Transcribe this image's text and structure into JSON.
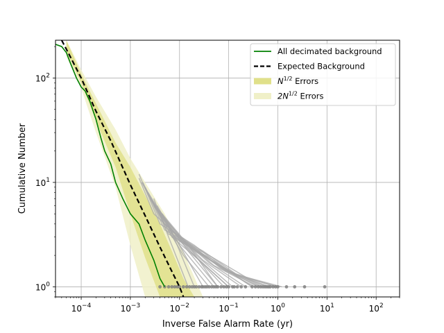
{
  "chart_data": {
    "type": "line",
    "xlabel": "Inverse False Alarm Rate (yr)",
    "ylabel": "Cumulative Number",
    "xscale": "log",
    "yscale": "log",
    "xlim": [
      3e-05,
      300
    ],
    "ylim": [
      0.8,
      230
    ],
    "grid": true,
    "legend_position": "top-right",
    "x_ticks": [
      {
        "value": 0.0001,
        "base": "10",
        "exp": "−4"
      },
      {
        "value": 0.001,
        "base": "10",
        "exp": "−3"
      },
      {
        "value": 0.01,
        "base": "10",
        "exp": "−2"
      },
      {
        "value": 0.1,
        "base": "10",
        "exp": "−1"
      },
      {
        "value": 1,
        "base": "10",
        "exp": "0"
      },
      {
        "value": 10,
        "base": "10",
        "exp": "1"
      },
      {
        "value": 100,
        "base": "10",
        "exp": "2"
      }
    ],
    "y_ticks": [
      {
        "value": 1,
        "base": "10",
        "exp": "0"
      },
      {
        "value": 10,
        "base": "10",
        "exp": "1"
      },
      {
        "value": 100,
        "base": "10",
        "exp": "2"
      }
    ],
    "legend": [
      {
        "key": "decimated",
        "label": "All decimated background",
        "kind": "line",
        "color": "#008000"
      },
      {
        "key": "expected",
        "label": "Expected Background",
        "kind": "dashed",
        "color": "#000000"
      },
      {
        "key": "err1",
        "label_prefix": "N",
        "label_sup": "1/2",
        "label_suffix": " Errors",
        "kind": "patch",
        "color": "#e0e08a"
      },
      {
        "key": "err2",
        "label_prefix": "2N",
        "label_sup": "1/2",
        "label_suffix": " Errors",
        "kind": "patch",
        "color": "#f0f0c8"
      }
    ],
    "series": [
      {
        "name": "All decimated background",
        "color": "#008000",
        "x": [
          3e-05,
          4e-05,
          5e-05,
          6e-05,
          8e-05,
          0.0001,
          0.00012,
          0.00015,
          0.0002,
          0.00025,
          0.0003,
          0.0004,
          0.0005,
          0.0007,
          0.001,
          0.0015,
          0.002,
          0.003,
          0.004,
          0.005
        ],
        "y": [
          210,
          200,
          175,
          140,
          100,
          82,
          75,
          60,
          40,
          27,
          20,
          15,
          10,
          7,
          5,
          4,
          2.8,
          1.8,
          1.2,
          1.0
        ]
      },
      {
        "name": "Expected Background",
        "color": "#000000",
        "x": [
          4e-05,
          6e-05,
          0.0001,
          0.0002,
          0.0004,
          0.001,
          0.002,
          0.004,
          0.007,
          0.01,
          0.012
        ],
        "y": [
          230,
          160,
          100,
          48,
          25,
          9.5,
          4.8,
          2.4,
          1.4,
          1.0,
          0.8
        ]
      }
    ],
    "bands": [
      {
        "name": "2N^{1/2} Errors",
        "color": "#f0f0c8",
        "x": [
          5e-05,
          0.0001,
          0.0002,
          0.0005,
          0.001,
          0.002,
          0.005,
          0.01,
          0.03
        ],
        "low": [
          160,
          80,
          30,
          9,
          2.5,
          0.8,
          0.8,
          0.8,
          0.8
        ],
        "high": [
          230,
          120,
          66,
          32,
          17,
          10,
          5,
          2.6,
          0.8
        ]
      },
      {
        "name": "N^{1/2} Errors",
        "color": "#e0e08a",
        "x": [
          5e-05,
          0.0001,
          0.0002,
          0.0005,
          0.001,
          0.002,
          0.004,
          0.007,
          0.012,
          0.02
        ],
        "low": [
          180,
          90,
          39,
          14,
          5,
          1.9,
          0.8,
          0.8,
          0.8,
          0.8
        ],
        "high": [
          230,
          110,
          57,
          24,
          14,
          7.5,
          4,
          2.2,
          1.2,
          0.8
        ]
      }
    ],
    "background_trials": [
      {
        "x": [
          0.0015,
          0.004,
          0.02,
          0.08,
          0.3
        ],
        "y": [
          12,
          4,
          2.5,
          1.5,
          1.0
        ]
      },
      {
        "x": [
          0.0018,
          0.005,
          0.03,
          0.15,
          0.6
        ],
        "y": [
          10,
          3.5,
          2.2,
          1.3,
          1.0
        ]
      },
      {
        "x": [
          0.002,
          0.006,
          0.04,
          0.25,
          1.0
        ],
        "y": [
          9,
          3.2,
          2,
          1.2,
          1.0
        ]
      },
      {
        "x": [
          0.0022,
          0.007,
          0.05,
          0.3
        ],
        "y": [
          8,
          3,
          1.8,
          1.0
        ]
      },
      {
        "x": [
          0.0025,
          0.008,
          0.06,
          0.4
        ],
        "y": [
          7,
          3,
          1.6,
          1.0
        ]
      },
      {
        "x": [
          0.003,
          0.01,
          0.08,
          0.5
        ],
        "y": [
          6,
          2.8,
          1.5,
          1.0
        ]
      },
      {
        "x": [
          0.0015,
          0.003,
          0.015,
          0.06
        ],
        "y": [
          11,
          5,
          2.5,
          1.0
        ]
      },
      {
        "x": [
          0.0017,
          0.0045,
          0.02,
          0.1
        ],
        "y": [
          10,
          4.5,
          2,
          1.0
        ]
      },
      {
        "x": [
          0.002,
          0.005,
          0.025,
          0.12
        ],
        "y": [
          9,
          4,
          1.9,
          1.0
        ]
      },
      {
        "x": [
          0.0023,
          0.006,
          0.03,
          0.18
        ],
        "y": [
          8,
          3.8,
          1.8,
          1.0
        ]
      },
      {
        "x": [
          0.0026,
          0.007,
          0.04,
          0.22
        ],
        "y": [
          7,
          3.5,
          1.7,
          1.0
        ]
      },
      {
        "x": [
          0.0028,
          0.009,
          0.05,
          0.35
        ],
        "y": [
          6.5,
          3.2,
          1.6,
          1.0
        ]
      },
      {
        "x": [
          0.0032,
          0.011,
          0.07,
          0.45
        ],
        "y": [
          6,
          3,
          1.5,
          1.0
        ]
      },
      {
        "x": [
          0.0035,
          0.012,
          0.09,
          0.7
        ],
        "y": [
          5.5,
          2.8,
          1.4,
          1.0
        ]
      },
      {
        "x": [
          0.004,
          0.015,
          0.1,
          0.9
        ],
        "y": [
          5,
          2.5,
          1.4,
          1.0
        ]
      },
      {
        "x": [
          0.005,
          0.02,
          0.15,
          1.2
        ],
        "y": [
          4,
          2.2,
          1.3,
          1.0
        ]
      },
      {
        "x": [
          0.0035,
          0.008,
          0.03
        ],
        "y": [
          6,
          3,
          1.0
        ]
      },
      {
        "x": [
          0.004,
          0.01,
          0.05
        ],
        "y": [
          5,
          2.5,
          1.0
        ]
      },
      {
        "x": [
          0.005,
          0.012,
          0.04
        ],
        "y": [
          4,
          2,
          1.0
        ]
      },
      {
        "x": [
          0.006,
          0.02,
          0.08
        ],
        "y": [
          3.5,
          2,
          1.0
        ]
      },
      {
        "x": [
          0.007,
          0.025,
          0.1
        ],
        "y": [
          3,
          1.8,
          1.0
        ]
      },
      {
        "x": [
          0.003,
          0.006,
          0.015
        ],
        "y": [
          7,
          3,
          1.0
        ]
      },
      {
        "x": [
          0.0045,
          0.009,
          0.02
        ],
        "y": [
          5,
          2.5,
          1.0
        ]
      },
      {
        "x": [
          0.005,
          0.015,
          0.06
        ],
        "y": [
          4.5,
          2.2,
          1.0
        ]
      }
    ],
    "trial_points": {
      "color": "#808080",
      "x": [
        0.004,
        0.005,
        0.006,
        0.007,
        0.008,
        0.009,
        0.01,
        0.012,
        0.014,
        0.016,
        0.018,
        0.02,
        0.022,
        0.025,
        0.028,
        0.03,
        0.033,
        0.036,
        0.04,
        0.045,
        0.05,
        0.055,
        0.06,
        0.07,
        0.08,
        0.09,
        0.1,
        0.12,
        0.13,
        0.15,
        0.18,
        0.22,
        0.3,
        0.35,
        0.4,
        0.45,
        0.5,
        0.55,
        0.6,
        0.65,
        0.7,
        0.8,
        0.9,
        1.0,
        1.5,
        2.2,
        3.5,
        9
      ],
      "y": 1
    }
  }
}
